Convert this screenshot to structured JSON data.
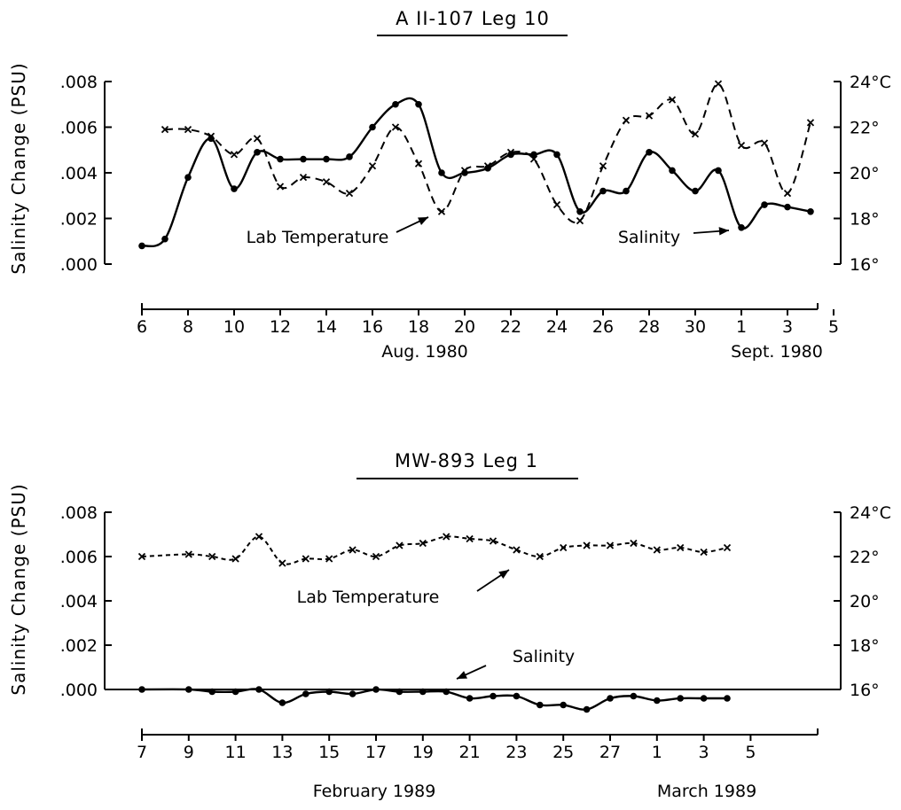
{
  "chart_data": [
    {
      "type": "line",
      "title": "A II-107   Leg 10",
      "ylabel": "Salinity  Change  (PSU)",
      "y2label": "",
      "ylim": [
        0,
        0.008
      ],
      "y2lim": [
        16,
        24
      ],
      "yticks": [
        ".000",
        ".002",
        ".004",
        ".006",
        ".008"
      ],
      "y2ticks": [
        "16°",
        "18°",
        "20°",
        "22°",
        "24°C"
      ],
      "x_tick_labels": [
        "6",
        "8",
        "10",
        "12",
        "14",
        "16",
        "18",
        "20",
        "22",
        "24",
        "26",
        "28",
        "30",
        "1",
        "3",
        "5"
      ],
      "x_months": [
        "Aug. 1980",
        "Sept. 1980"
      ],
      "grid": false,
      "series": [
        {
          "name": "Salinity",
          "style": "solid",
          "marker": "dot",
          "axis": "left",
          "x": [
            "Aug 6",
            "Aug 7",
            "Aug 8",
            "Aug 9",
            "Aug 10",
            "Aug 11",
            "Aug 12",
            "Aug 13",
            "Aug 14",
            "Aug 15",
            "Aug 16",
            "Aug 17",
            "Aug 18",
            "Aug 19",
            "Aug 20",
            "Aug 21",
            "Aug 22",
            "Aug 23",
            "Aug 24",
            "Aug 25",
            "Aug 26",
            "Aug 27",
            "Aug 28",
            "Aug 29",
            "Aug 30",
            "Aug 31",
            "Sept 1",
            "Sept 2",
            "Sept 3",
            "Sept 4"
          ],
          "values": [
            0.0008,
            0.0011,
            0.0038,
            0.0055,
            0.0033,
            0.0049,
            0.0046,
            0.0046,
            0.0046,
            0.0047,
            0.006,
            0.007,
            0.007,
            0.004,
            0.004,
            0.0042,
            0.0048,
            0.0048,
            0.0048,
            0.0023,
            0.0032,
            0.0032,
            0.0049,
            0.0041,
            0.0032,
            0.0041,
            0.0016,
            0.0026,
            0.0025,
            0.0023
          ]
        },
        {
          "name": "Lab Temperature",
          "style": "dashed",
          "marker": "x",
          "axis": "right",
          "x": [
            "Aug 7",
            "Aug 8",
            "Aug 9",
            "Aug 10",
            "Aug 11",
            "Aug 12",
            "Aug 13",
            "Aug 14",
            "Aug 15",
            "Aug 16",
            "Aug 17",
            "Aug 18",
            "Aug 19",
            "Aug 20",
            "Aug 21",
            "Aug 22",
            "Aug 23",
            "Aug 24",
            "Aug 25",
            "Aug 26",
            "Aug 27",
            "Aug 28",
            "Aug 29",
            "Aug 30",
            "Aug 31",
            "Sept 1",
            "Sept 2",
            "Sept 3",
            "Sept 4"
          ],
          "values": [
            21.9,
            21.9,
            21.6,
            20.8,
            21.5,
            19.4,
            19.8,
            19.6,
            19.1,
            20.3,
            22.0,
            20.4,
            18.3,
            20.1,
            20.3,
            20.9,
            20.6,
            18.6,
            17.9,
            20.3,
            22.3,
            22.5,
            23.2,
            21.7,
            23.9,
            21.2,
            21.3,
            19.1,
            22.2
          ]
        }
      ],
      "annotations": [
        "Lab Temperature",
        "Salinity"
      ]
    },
    {
      "type": "line",
      "title": "MW-893     Leg  1",
      "ylabel": "Salinity  Change  (PSU)",
      "y2label": "",
      "ylim": [
        0,
        0.008
      ],
      "y2lim": [
        16,
        24
      ],
      "yticks": [
        ".000",
        ".002",
        ".004",
        ".006",
        ".008"
      ],
      "y2ticks": [
        "16°",
        "18°",
        "20°",
        "22°",
        "24°C"
      ],
      "x_tick_labels": [
        "7",
        "9",
        "11",
        "13",
        "15",
        "17",
        "19",
        "21",
        "23",
        "25",
        "27",
        "1",
        "3",
        "5"
      ],
      "x_months": [
        "February  1989",
        "March  1989"
      ],
      "grid": false,
      "series": [
        {
          "name": "Lab Temperature",
          "style": "dashed",
          "marker": "x",
          "axis": "right",
          "x": [
            "Feb 7",
            "Feb 9",
            "Feb 10",
            "Feb 11",
            "Feb 12",
            "Feb 13",
            "Feb 14",
            "Feb 15",
            "Feb 16",
            "Feb 17",
            "Feb 18",
            "Feb 19",
            "Feb 20",
            "Feb 21",
            "Feb 22",
            "Feb 23",
            "Feb 24",
            "Feb 25",
            "Feb 26",
            "Feb 27",
            "Feb 28",
            "Mar 1",
            "Mar 2",
            "Mar 3",
            "Mar 4"
          ],
          "values": [
            22.0,
            22.1,
            22.0,
            21.9,
            22.9,
            21.7,
            21.9,
            21.9,
            22.3,
            22.0,
            22.5,
            22.6,
            22.9,
            22.8,
            22.7,
            22.3,
            22.0,
            22.4,
            22.5,
            22.5,
            22.6,
            22.3,
            22.4,
            22.2,
            22.4
          ]
        },
        {
          "name": "Salinity",
          "style": "solid",
          "marker": "dot",
          "axis": "left",
          "x": [
            "Feb 7",
            "Feb 9",
            "Feb 10",
            "Feb 11",
            "Feb 12",
            "Feb 13",
            "Feb 14",
            "Feb 15",
            "Feb 16",
            "Feb 17",
            "Feb 18",
            "Feb 19",
            "Feb 20",
            "Feb 21",
            "Feb 22",
            "Feb 23",
            "Feb 24",
            "Feb 25",
            "Feb 26",
            "Feb 27",
            "Feb 28",
            "Mar 1",
            "Mar 2",
            "Mar 3",
            "Mar 4"
          ],
          "values": [
            0.0,
            0.0,
            -0.0001,
            -0.0001,
            0.0,
            -0.0006,
            -0.0002,
            -0.0001,
            -0.0002,
            0.0,
            -0.0001,
            -0.0001,
            -0.0001,
            -0.0004,
            -0.0003,
            -0.0003,
            -0.0007,
            -0.0007,
            -0.0009,
            -0.0004,
            -0.0003,
            -0.0005,
            -0.0004,
            -0.0004,
            -0.0004
          ]
        }
      ],
      "annotations": [
        "Lab Temperature",
        "Salinity"
      ]
    }
  ]
}
